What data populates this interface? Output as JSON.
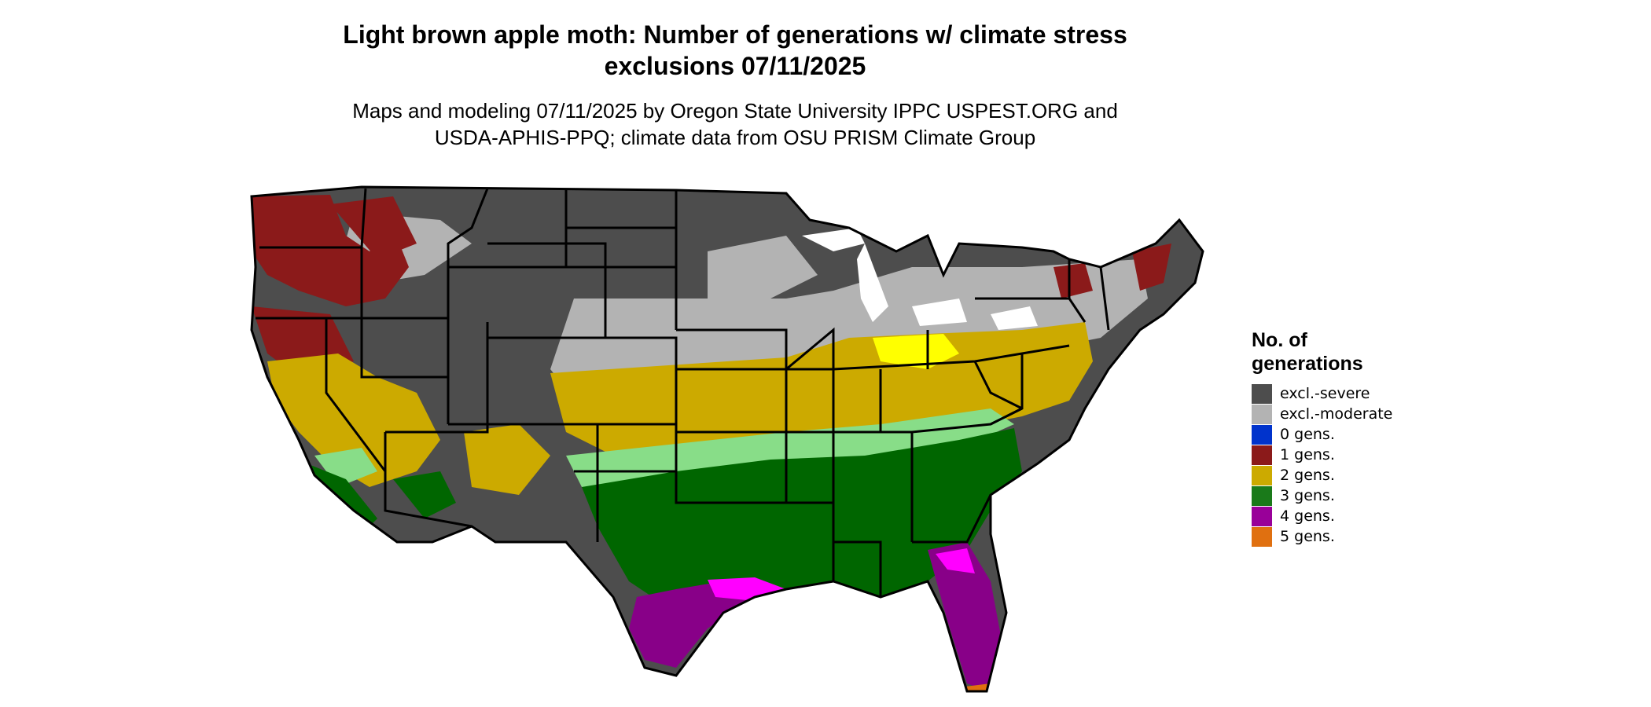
{
  "title_line1": "Light brown apple moth: Number of generations w/ climate stress",
  "title_line2": "exclusions 07/11/2025",
  "subtitle_line1": "Maps and modeling 07/11/2025 by Oregon State University IPPC USPEST.ORG and",
  "subtitle_line2": "USDA-APHIS-PPQ; climate data from OSU PRISM Climate Group",
  "legend": {
    "title_line1": "No. of",
    "title_line2": "generations",
    "items": [
      {
        "label": "excl.-severe",
        "color": "#4d4d4d"
      },
      {
        "label": "excl.-moderate",
        "color": "#b3b3b3"
      },
      {
        "label": "0 gens.",
        "color": "#0033cc"
      },
      {
        "label": "1 gens.",
        "color": "#8b1a1a"
      },
      {
        "label": "2 gens.",
        "color": "#ccaa00"
      },
      {
        "label": "3 gens.",
        "color": "#1a7a1a"
      },
      {
        "label": "4 gens.",
        "color": "#990099"
      },
      {
        "label": "5 gens.",
        "color": "#e07010"
      }
    ]
  },
  "map_colors": {
    "severe": "#4d4d4d",
    "moderate": "#b3b3b3",
    "one_gen": "#8b1a1a",
    "two_gen": "#ccaa00",
    "three_gen": "#006600",
    "three_gen_light": "#88dd88",
    "four_gen": "#880088",
    "four_gen_bright": "#ff00ff",
    "five_gen": "#e07010",
    "highlight_yellow": "#ffff00",
    "border": "#000000"
  }
}
